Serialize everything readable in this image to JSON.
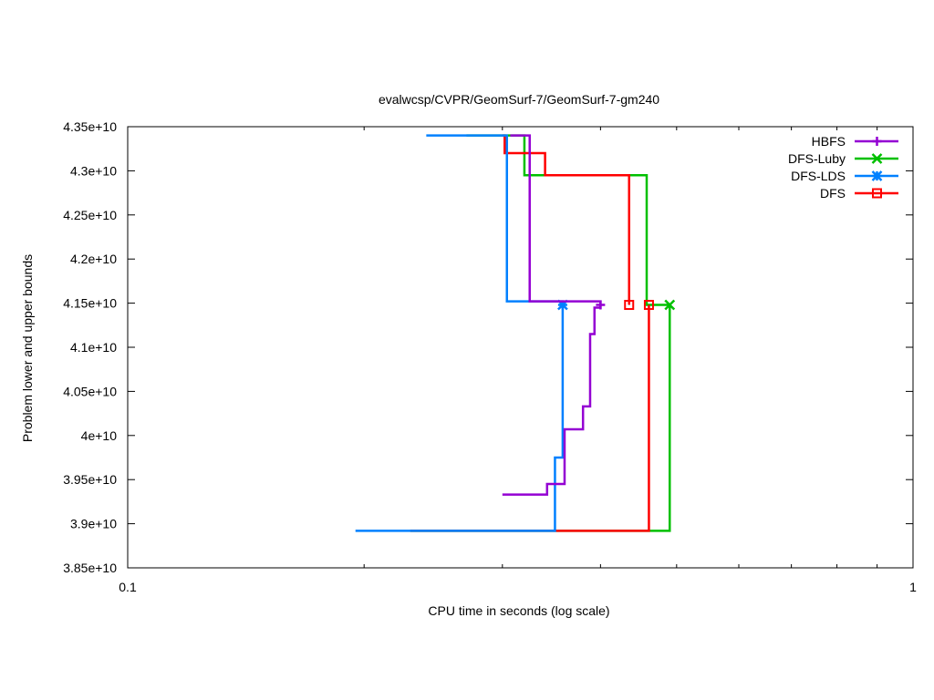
{
  "chart_data": {
    "type": "line",
    "title": "evalwcsp/CVPR/GeomSurf-7/GeomSurf-7-gm240",
    "xlabel": "CPU time in seconds (log scale)",
    "ylabel": "Problem lower and upper bounds",
    "x_scale": "log",
    "xlim": [
      0.1,
      1
    ],
    "ylim": [
      38500000000,
      43500000000
    ],
    "x_ticks": [
      {
        "value": 0.1,
        "label": "0.1"
      },
      {
        "value": 1,
        "label": "1"
      }
    ],
    "x_minor_ticks": [
      0.2,
      0.3,
      0.4,
      0.5,
      0.6,
      0.7,
      0.8,
      0.9
    ],
    "y_ticks": [
      {
        "value": 38500000000,
        "label": "3.85e+10"
      },
      {
        "value": 39000000000,
        "label": "3.9e+10"
      },
      {
        "value": 39500000000,
        "label": "3.95e+10"
      },
      {
        "value": 40000000000,
        "label": "4e+10"
      },
      {
        "value": 40500000000,
        "label": "4.05e+10"
      },
      {
        "value": 41000000000,
        "label": "4.1e+10"
      },
      {
        "value": 41500000000,
        "label": "4.15e+10"
      },
      {
        "value": 42000000000,
        "label": "4.2e+10"
      },
      {
        "value": 42500000000,
        "label": "4.25e+10"
      },
      {
        "value": 43000000000,
        "label": "4.3e+10"
      },
      {
        "value": 43500000000,
        "label": "4.35e+10"
      }
    ],
    "grid": false,
    "legend_position": "top-right",
    "series": [
      {
        "name": "HBFS",
        "color": "#9400d3",
        "marker": "plus",
        "upper": {
          "x": [
            0.307,
            0.322,
            0.325,
            0.385,
            0.4
          ],
          "y": [
            43400000000,
            43400000000,
            41520000000,
            41520000000,
            41480000000
          ]
        },
        "lower": {
          "x": [
            0.3,
            0.342,
            0.36,
            0.38,
            0.388,
            0.393,
            0.4
          ],
          "y": [
            39330000000,
            39450000000,
            40070000000,
            40330000000,
            41150000000,
            41450000000,
            41480000000
          ]
        },
        "end": {
          "x": 0.4,
          "y": 41480000000
        }
      },
      {
        "name": "DFS-Luby",
        "color": "#00c000",
        "marker": "x",
        "upper": {
          "x": [
            0.27,
            0.32,
            0.458,
            0.49
          ],
          "y": [
            43400000000,
            42950000000,
            41480000000,
            41480000000
          ]
        },
        "lower": {
          "x": [
            0.229,
            0.49
          ],
          "y": [
            38920000000,
            41480000000
          ]
        },
        "end": {
          "x": 0.49,
          "y": 41480000000
        }
      },
      {
        "name": "DFS-LDS",
        "color": "#0080ff",
        "marker": "star",
        "upper": {
          "x": [
            0.24,
            0.304,
            0.358
          ],
          "y": [
            43400000000,
            41520000000,
            41480000000
          ]
        },
        "lower": {
          "x": [
            0.195,
            0.35,
            0.358
          ],
          "y": [
            38920000000,
            39750000000,
            41480000000
          ]
        },
        "end": {
          "x": 0.358,
          "y": 41480000000
        }
      },
      {
        "name": "DFS",
        "color": "#ff0000",
        "marker": "square",
        "upper": {
          "x": [
            0.3,
            0.302,
            0.34,
            0.435
          ],
          "y": [
            43400000000,
            43200000000,
            42950000000,
            41480000000
          ]
        },
        "lower": {
          "x": [
            0.229,
            0.461
          ],
          "y": [
            38920000000,
            41480000000
          ]
        },
        "end": {
          "x": 0.461,
          "y": 41480000000
        },
        "extra_markers": [
          {
            "x": 0.435,
            "y": 41480000000
          }
        ]
      }
    ]
  }
}
